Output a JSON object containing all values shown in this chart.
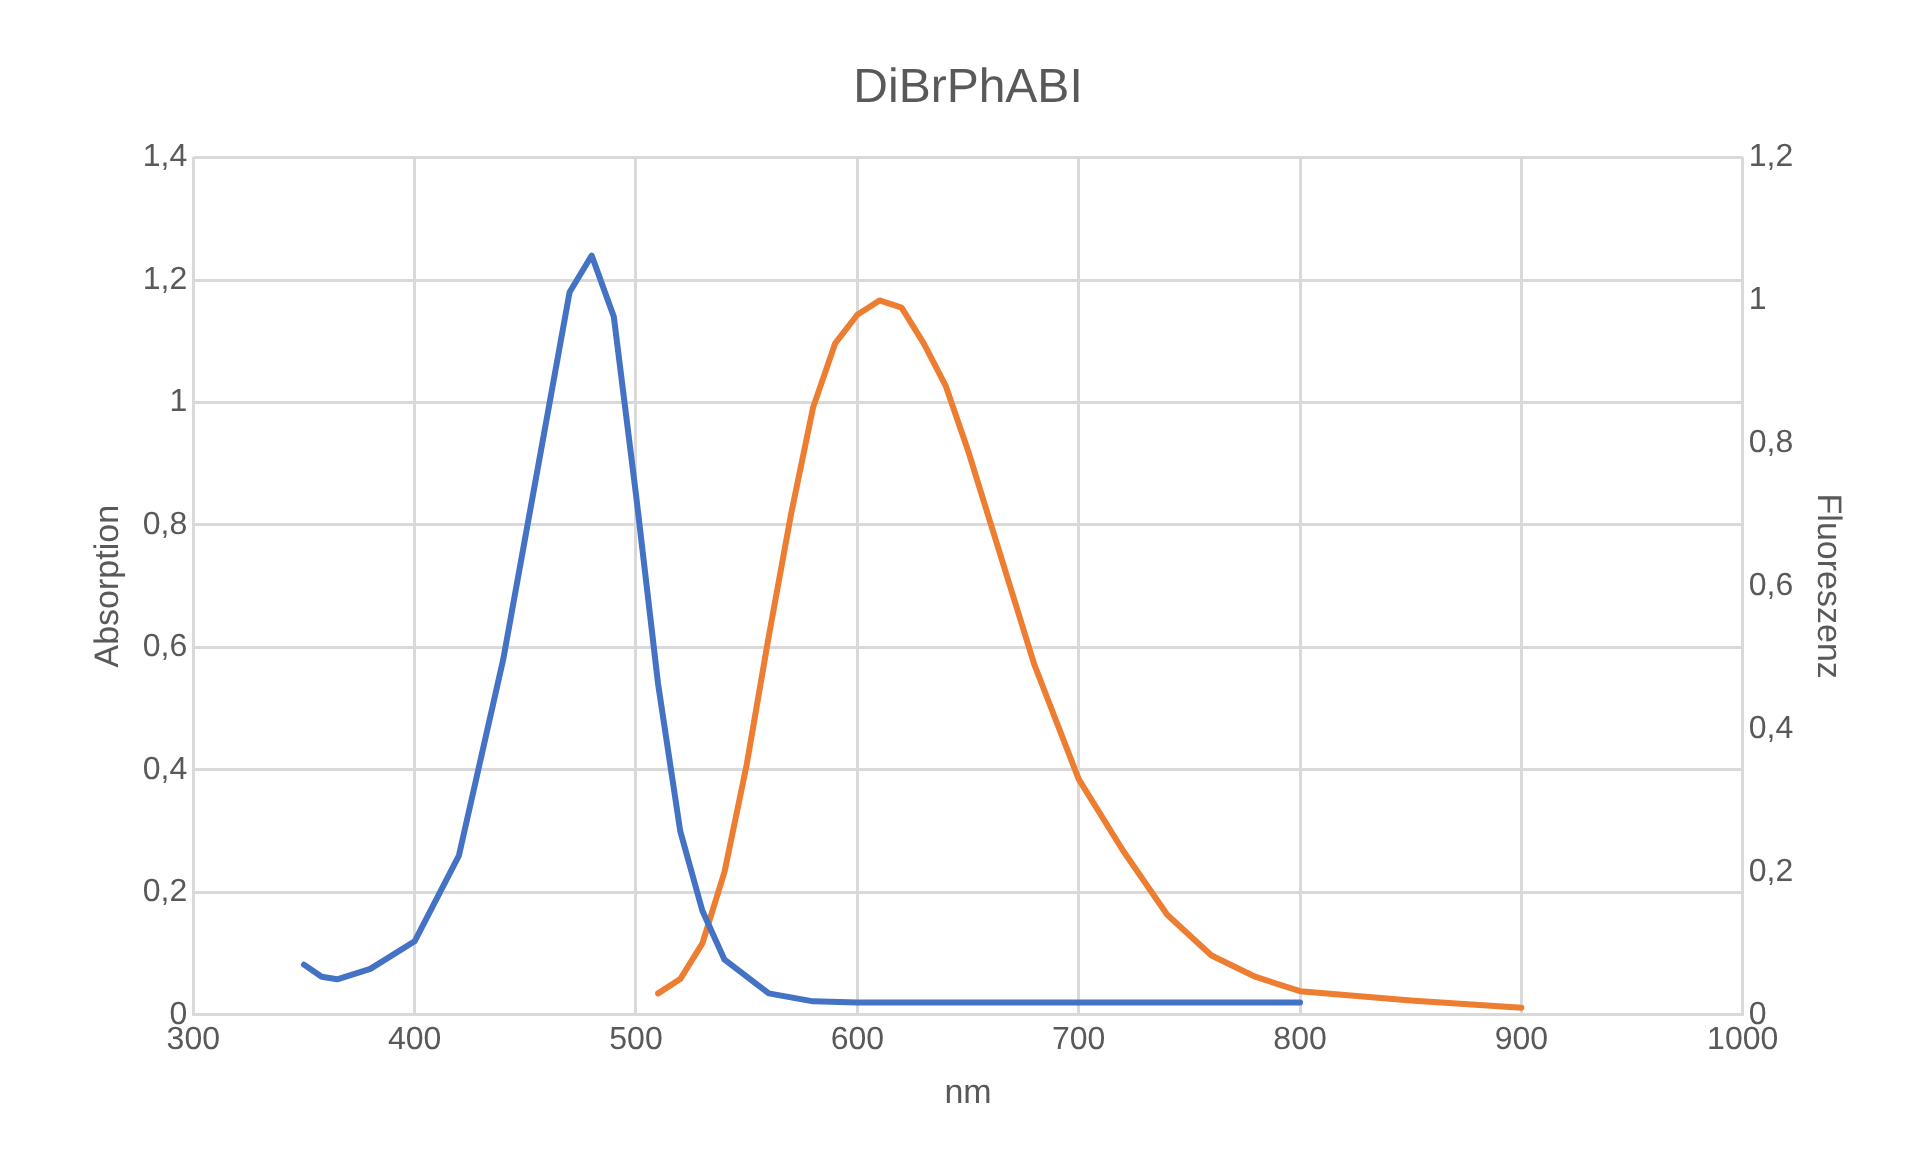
{
  "chart_data": {
    "type": "line",
    "title": "DiBrPhABI",
    "xlabel": "nm",
    "ylabel": "Absorption",
    "y2label": "Fluoreszenz",
    "xlim": [
      300,
      1000
    ],
    "xticks": [
      300,
      400,
      500,
      600,
      700,
      800,
      900,
      1000
    ],
    "ylim": [
      0,
      1.4
    ],
    "yticks": [
      0,
      {
        "value": 0.2,
        "label": "0,2"
      },
      {
        "value": 0.4,
        "label": "0,4"
      },
      {
        "value": 0.6,
        "label": "0,6"
      },
      {
        "value": 0.8,
        "label": "0,8"
      },
      1,
      {
        "value": 1.2,
        "label": "1,2"
      },
      {
        "value": 1.4,
        "label": "1,4"
      }
    ],
    "y2lim": [
      0,
      1.2
    ],
    "y2ticks": [
      0,
      {
        "value": 0.2,
        "label": "0,2"
      },
      {
        "value": 0.4,
        "label": "0,4"
      },
      {
        "value": 0.6,
        "label": "0,6"
      },
      {
        "value": 0.8,
        "label": "0,8"
      },
      1,
      {
        "value": 1.2,
        "label": "1,2"
      }
    ],
    "grid": true,
    "legend": false,
    "marker": "none",
    "line_style": "solid",
    "series": [
      {
        "color": "#4472c4",
        "x": [
          350,
          358,
          365,
          380,
          400,
          420,
          440,
          460,
          470,
          480,
          490,
          500,
          510,
          520,
          530,
          540,
          560,
          580,
          600,
          650,
          700,
          750,
          800
        ],
        "values": [
          0.082,
          0.062,
          0.058,
          0.075,
          0.12,
          0.26,
          0.58,
          0.98,
          1.18,
          1.24,
          1.14,
          0.85,
          0.54,
          0.3,
          0.17,
          0.09,
          0.035,
          0.022,
          0.02,
          0.02,
          0.02,
          0.02,
          0.02
        ]
      },
      {
        "color": "#ed7d31",
        "axis": "y2",
        "x": [
          510,
          520,
          530,
          540,
          550,
          560,
          570,
          580,
          590,
          600,
          610,
          620,
          630,
          640,
          650,
          660,
          680,
          700,
          720,
          740,
          760,
          780,
          800,
          850,
          900
        ],
        "values": [
          0.03,
          0.05,
          0.1,
          0.2,
          0.35,
          0.53,
          0.7,
          0.85,
          0.94,
          0.98,
          1.0,
          0.99,
          0.94,
          0.88,
          0.79,
          0.69,
          0.49,
          0.33,
          0.23,
          0.14,
          0.083,
          0.053,
          0.033,
          0.02,
          0.01
        ]
      }
    ]
  }
}
